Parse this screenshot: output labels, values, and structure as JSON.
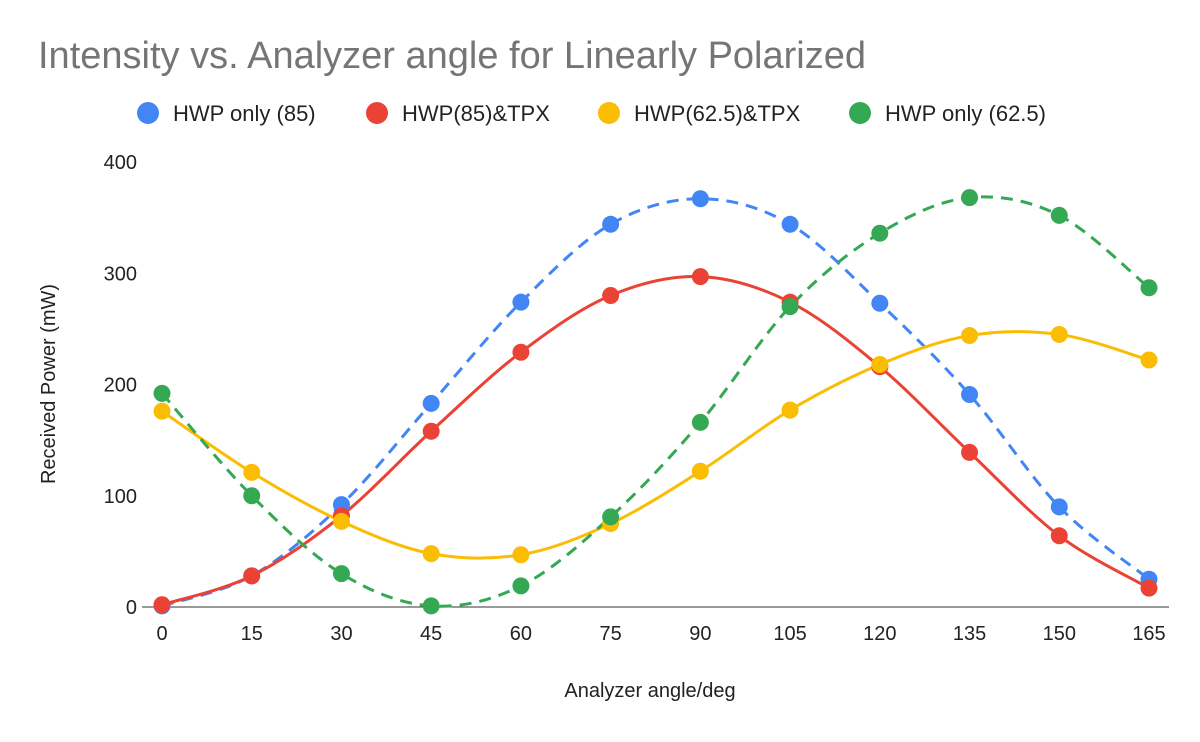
{
  "chart_data": {
    "type": "line",
    "title": "Intensity vs. Analyzer angle for Linearly Polarized",
    "xlabel": "Analyzer angle/deg",
    "ylabel": "Received Power (mW)",
    "x": [
      0,
      15,
      30,
      45,
      60,
      75,
      90,
      105,
      120,
      135,
      150,
      165
    ],
    "ylim": [
      0,
      400
    ],
    "yticks": [
      0,
      100,
      200,
      300,
      400
    ],
    "grid": false,
    "legend": "top",
    "series": [
      {
        "name": "HWP only (85)",
        "color": "#4285F4",
        "dash": true,
        "values": [
          1,
          28,
          92,
          183,
          274,
          344,
          367,
          344,
          273,
          191,
          90,
          25
        ]
      },
      {
        "name": "HWP(85)&TPX",
        "color": "#EA4335",
        "dash": false,
        "values": [
          2,
          28,
          82,
          158,
          229,
          280,
          297,
          274,
          216,
          139,
          64,
          17
        ]
      },
      {
        "name": "HWP(62.5)&TPX",
        "color": "#FBBC04",
        "dash": false,
        "values": [
          176,
          121,
          77,
          48,
          47,
          75,
          122,
          177,
          218,
          244,
          245,
          222
        ]
      },
      {
        "name": "HWP only (62.5)",
        "color": "#34A853",
        "dash": true,
        "values": [
          192,
          100,
          30,
          1,
          19,
          81,
          166,
          270,
          336,
          368,
          352,
          287
        ]
      }
    ]
  }
}
